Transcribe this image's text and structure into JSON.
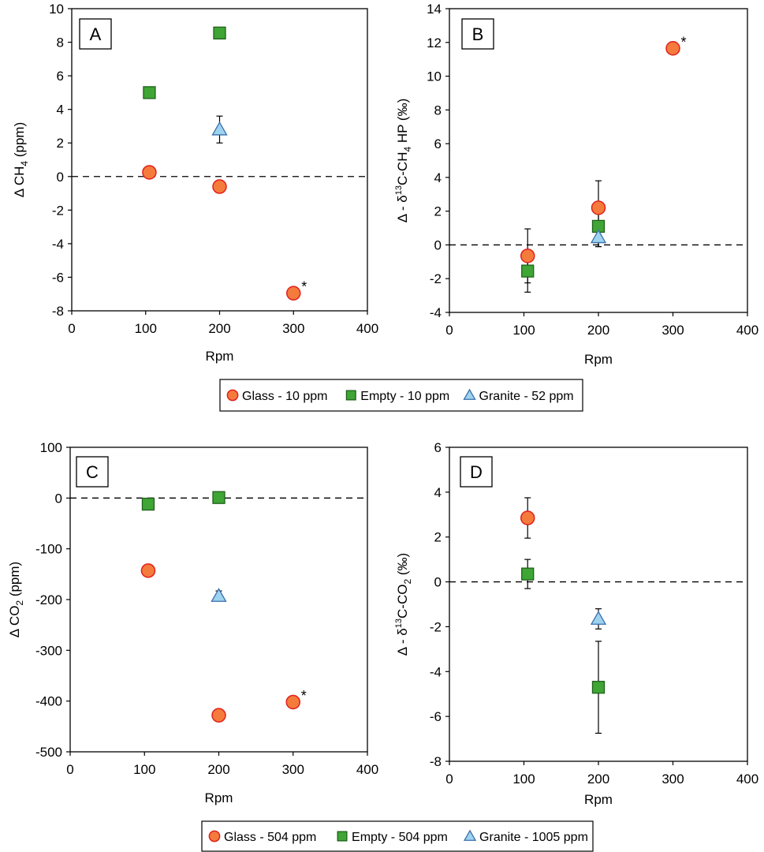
{
  "colors": {
    "glass_fill": "#f47b3c",
    "glass_stroke": "#e0201c",
    "empty_fill": "#3fa535",
    "empty_stroke": "#20611a",
    "granite_fill": "#9ed3f0",
    "granite_stroke": "#3a6fa8",
    "axis": "#000000",
    "zero_line": "#000000"
  },
  "chart_data": [
    {
      "panel": "A",
      "type": "scatter",
      "xlabel": "Rpm",
      "ylabel": {
        "prefix": "Δ CH",
        "sub": "4",
        "suffix": " (ppm)"
      },
      "xlim": [
        0,
        400
      ],
      "ylim": [
        -8,
        10
      ],
      "xticks": [
        0,
        100,
        200,
        300,
        400
      ],
      "yticks": [
        -8,
        -6,
        -4,
        -2,
        0,
        2,
        4,
        6,
        8,
        10
      ],
      "zero_line": true,
      "series": [
        {
          "name": "Glass - 10 ppm",
          "marker": "circle",
          "points": [
            {
              "x": 105,
              "y": 0.25
            },
            {
              "x": 200,
              "y": -0.6
            },
            {
              "x": 300,
              "y": -6.95,
              "star": true
            }
          ]
        },
        {
          "name": "Empty - 10 ppm",
          "marker": "square",
          "points": [
            {
              "x": 105,
              "y": 5.0
            },
            {
              "x": 200,
              "y": 8.55,
              "err": 0.25
            }
          ]
        },
        {
          "name": "Granite - 52 ppm",
          "marker": "triangle",
          "points": [
            {
              "x": 200,
              "y": 2.8,
              "err": 0.8
            }
          ]
        }
      ]
    },
    {
      "panel": "B",
      "type": "scatter",
      "xlabel": "Rpm",
      "ylabel": {
        "prefix": "Δ - δ",
        "sup": "13",
        "suffix": "C-CH",
        "sub": "4",
        "tail": " HP (‰)"
      },
      "xlim": [
        0,
        400
      ],
      "ylim": [
        -4,
        14
      ],
      "xticks": [
        0,
        100,
        200,
        300,
        400
      ],
      "yticks": [
        -4,
        -2,
        0,
        2,
        4,
        6,
        8,
        10,
        12,
        14
      ],
      "zero_line": true,
      "series": [
        {
          "name": "Glass - 10 ppm",
          "marker": "circle",
          "points": [
            {
              "x": 105,
              "y": -0.65,
              "err": 1.6
            },
            {
              "x": 200,
              "y": 2.2,
              "err": 1.6
            },
            {
              "x": 300,
              "y": 11.65,
              "star": true
            }
          ]
        },
        {
          "name": "Empty - 10 ppm",
          "marker": "square",
          "points": [
            {
              "x": 105,
              "y": -1.55,
              "err": 1.25
            },
            {
              "x": 200,
              "y": 1.1,
              "err": 1.2
            }
          ]
        },
        {
          "name": "Granite - 52 ppm",
          "marker": "triangle",
          "points": [
            {
              "x": 200,
              "y": 0.45,
              "err": 0.55
            }
          ]
        }
      ]
    },
    {
      "panel": "C",
      "type": "scatter",
      "xlabel": "Rpm",
      "ylabel": {
        "prefix": "Δ CO",
        "sub": "2",
        "suffix": " (ppm)"
      },
      "xlim": [
        0,
        400
      ],
      "ylim": [
        -500,
        100
      ],
      "xticks": [
        0,
        100,
        200,
        300,
        400
      ],
      "yticks": [
        -500,
        -400,
        -300,
        -200,
        -100,
        0,
        100
      ],
      "zero_line": true,
      "series": [
        {
          "name": "Glass - 504 ppm",
          "marker": "circle",
          "points": [
            {
              "x": 105,
              "y": -143
            },
            {
              "x": 200,
              "y": -428
            },
            {
              "x": 300,
              "y": -402,
              "star": true
            }
          ]
        },
        {
          "name": "Empty - 504 ppm",
          "marker": "square",
          "points": [
            {
              "x": 105,
              "y": -12
            },
            {
              "x": 200,
              "y": 1
            }
          ]
        },
        {
          "name": "Granite - 1005 ppm",
          "marker": "triangle",
          "points": [
            {
              "x": 200,
              "y": -193,
              "err": 10
            }
          ]
        }
      ]
    },
    {
      "panel": "D",
      "type": "scatter",
      "xlabel": "Rpm",
      "ylabel": {
        "prefix": "Δ - δ",
        "sup": "13",
        "suffix": "C-CO",
        "sub": "2",
        "tail": "  (‰)"
      },
      "xlim": [
        0,
        400
      ],
      "ylim": [
        -8,
        6
      ],
      "xticks": [
        0,
        100,
        200,
        300,
        400
      ],
      "yticks": [
        -8,
        -6,
        -4,
        -2,
        0,
        2,
        4,
        6
      ],
      "zero_line": true,
      "series": [
        {
          "name": "Glass - 504 ppm",
          "marker": "circle",
          "points": [
            {
              "x": 105,
              "y": 2.85,
              "err": 0.9
            }
          ]
        },
        {
          "name": "Empty - 504 ppm",
          "marker": "square",
          "points": [
            {
              "x": 105,
              "y": 0.35,
              "err": 0.65
            },
            {
              "x": 200,
              "y": -4.7,
              "err": 2.05
            }
          ]
        },
        {
          "name": "Granite - 1005 ppm",
          "marker": "triangle",
          "points": [
            {
              "x": 200,
              "y": -1.65,
              "err": 0.45
            }
          ]
        }
      ]
    }
  ],
  "legends": [
    {
      "entries": [
        {
          "marker": "circle",
          "label": "Glass - 10 ppm"
        },
        {
          "marker": "square",
          "label": "Empty - 10 ppm"
        },
        {
          "marker": "triangle",
          "label": "Granite - 52 ppm"
        }
      ]
    },
    {
      "entries": [
        {
          "marker": "circle",
          "label": "Glass - 504 ppm"
        },
        {
          "marker": "square",
          "label": "Empty - 504 ppm"
        },
        {
          "marker": "triangle",
          "label": "Granite - 1005 ppm"
        }
      ]
    }
  ],
  "star_symbol": "*"
}
